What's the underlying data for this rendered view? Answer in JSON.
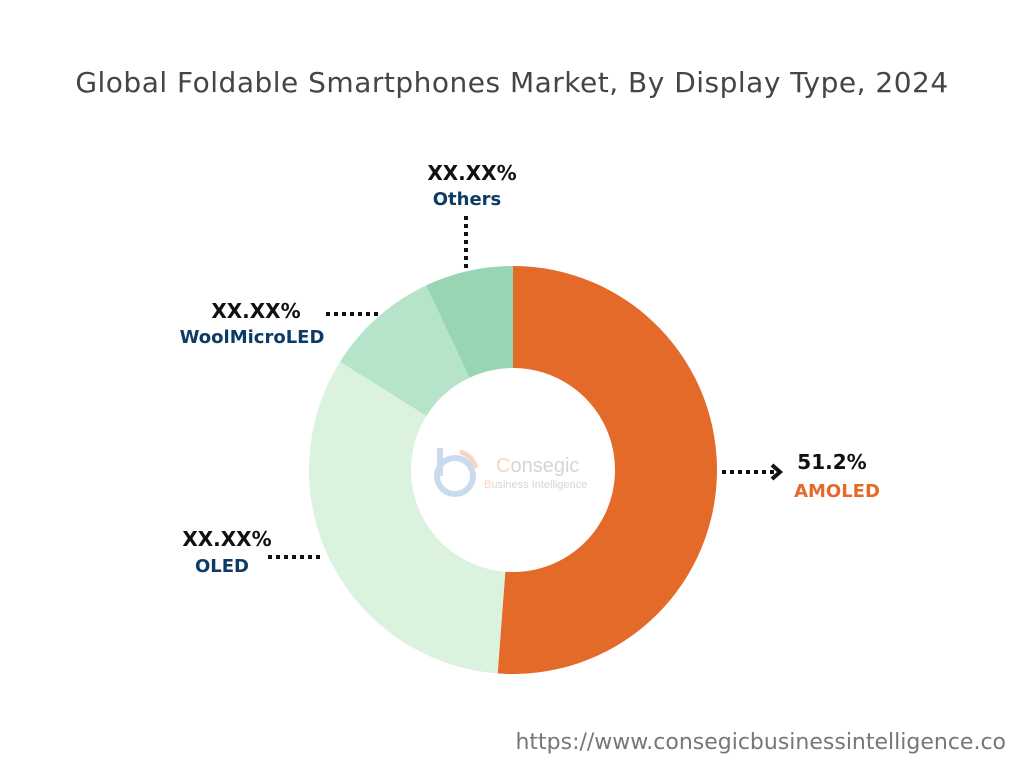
{
  "title": "Global Foldable Smartphones Market, By Display Type, 2024",
  "url": "https://www.consegicbusinessintelligence.co",
  "logo": {
    "name": "Consegic",
    "tagline": "Business Intelligence"
  },
  "chart_data": {
    "type": "pie",
    "variant": "donut",
    "title": "Global Foldable Smartphones Market, By Display Type, 2024",
    "slices": [
      {
        "name": "AMOLED",
        "value": 51.2,
        "label": "51.2%",
        "color": "#E46A29",
        "label_color": "#E46A29"
      },
      {
        "name": "OLED",
        "value": 32.7,
        "label": "XX.XX%",
        "color": "#DAF2DE",
        "label_color": "#0D3B66"
      },
      {
        "name": "WoolMicroLED",
        "value": 9.1,
        "label": "XX.XX%",
        "color": "#B5E4C8",
        "label_color": "#0D3B66"
      },
      {
        "name": "Others",
        "value": 7.0,
        "label": "XX.XX%",
        "color": "#98D6B3",
        "label_color": "#0D3B66"
      }
    ],
    "start_angle": "top",
    "direction": "clockwise"
  }
}
